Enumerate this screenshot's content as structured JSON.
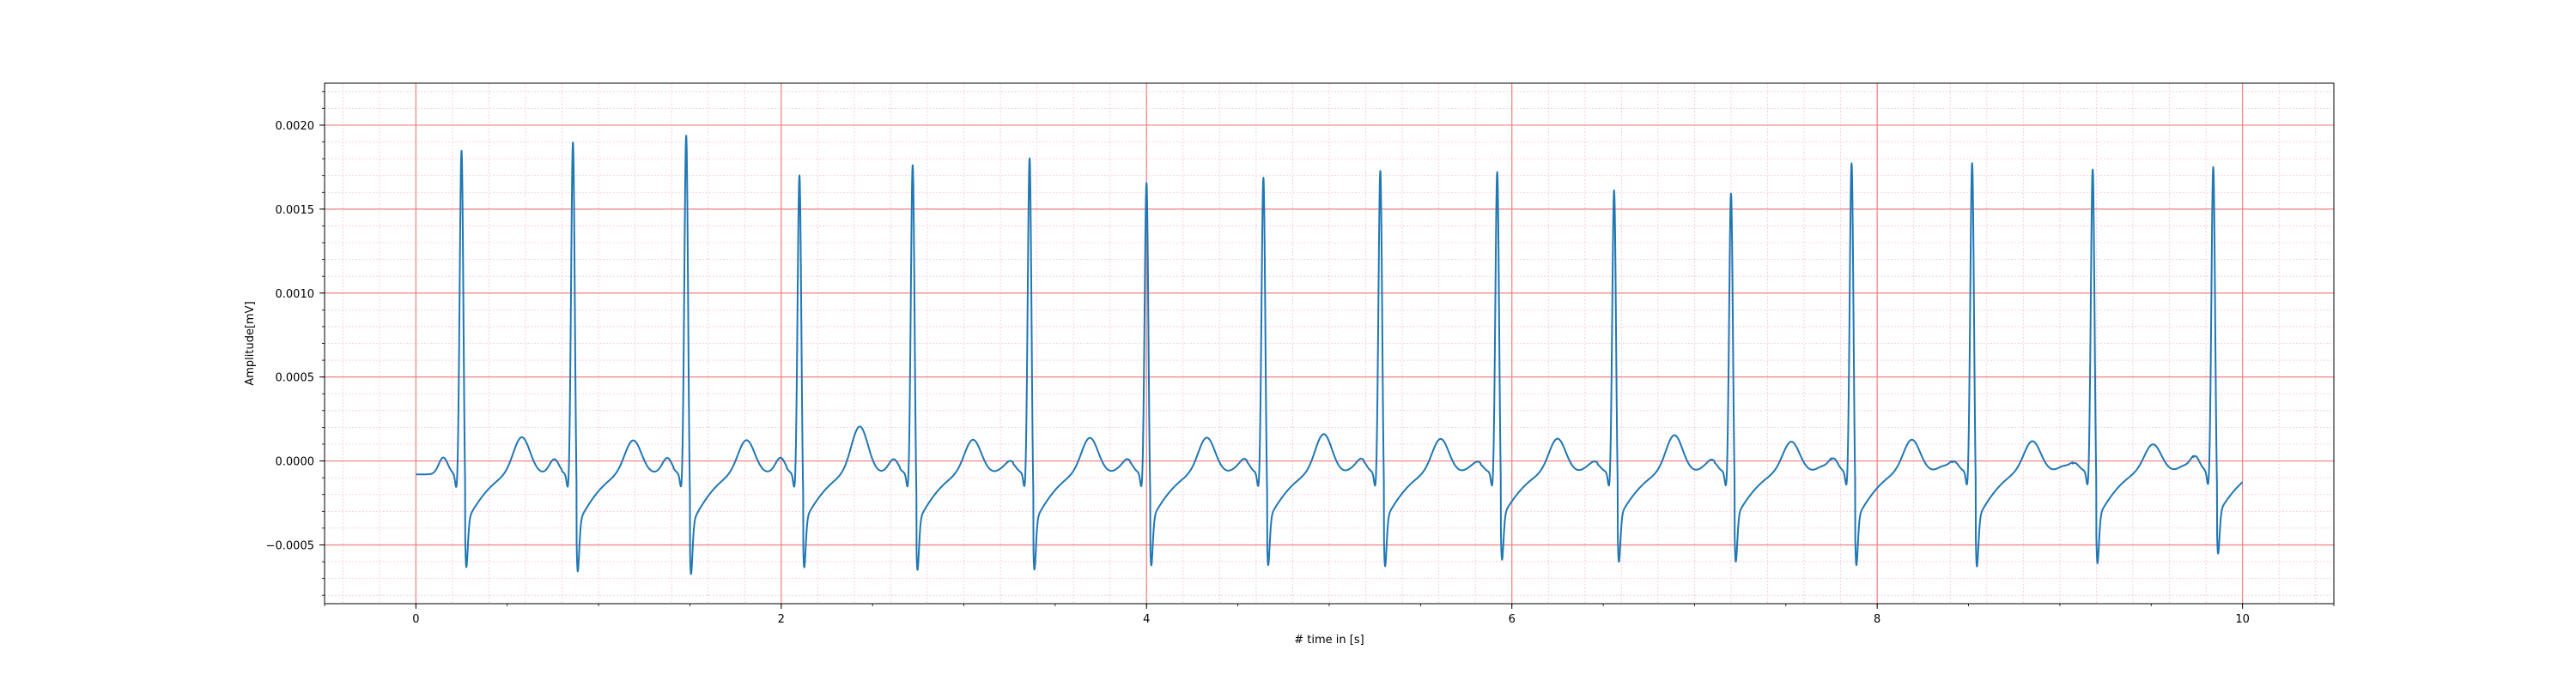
{
  "chart_data": {
    "type": "line",
    "title": "",
    "xlabel": "# time in [s]",
    "ylabel": "Amplitude[mV]",
    "xlim": [
      -0.5,
      10.5
    ],
    "ylim": [
      -0.00085,
      0.00225
    ],
    "x_ticks": [
      0,
      2,
      4,
      6,
      8,
      10
    ],
    "x_tick_labels": [
      "0",
      "2",
      "4",
      "6",
      "8",
      "10"
    ],
    "y_ticks": [
      -0.0005,
      0.0,
      0.0005,
      0.001,
      0.0015,
      0.002
    ],
    "y_tick_labels": [
      "−0.0005",
      "0.0000",
      "0.0005",
      "0.0010",
      "0.0015",
      "0.0020"
    ],
    "grid": {
      "major": true,
      "minor": true
    },
    "colors": {
      "line": "#1f77b4",
      "major_grid": "#f08080",
      "minor_grid": "#f7c6d6",
      "axes": "#000000"
    },
    "signal": {
      "sampling_hz": 100,
      "start_s": 0,
      "end_s": 10,
      "baseline_start_mV": -8e-05,
      "baseline_end_mV": -6e-05
    },
    "beats": [
      {
        "r_time": 0.25,
        "r_peak": 0.00201,
        "s_trough": -0.00066,
        "p_amp": 0.0001,
        "t_amp": 0.00022
      },
      {
        "r_time": 0.86,
        "r_peak": 0.00206,
        "s_trough": -0.00069,
        "p_amp": 6e-05,
        "t_amp": 0.0002
      },
      {
        "r_time": 1.48,
        "r_peak": 0.0021,
        "s_trough": -0.00071,
        "p_amp": 7e-05,
        "t_amp": 0.0002
      },
      {
        "r_time": 2.1,
        "r_peak": 0.00186,
        "s_trough": -0.00066,
        "p_amp": 7e-05,
        "t_amp": 0.00028
      },
      {
        "r_time": 2.72,
        "r_peak": 0.00192,
        "s_trough": -0.00068,
        "p_amp": 6e-05,
        "t_amp": 0.0002
      },
      {
        "r_time": 3.36,
        "r_peak": 0.00196,
        "s_trough": -0.00068,
        "p_amp": 6e-05,
        "t_amp": 0.00021
      },
      {
        "r_time": 4.0,
        "r_peak": 0.00181,
        "s_trough": -0.00065,
        "p_amp": 7e-05,
        "t_amp": 0.00021
      },
      {
        "r_time": 4.64,
        "r_peak": 0.00184,
        "s_trough": -0.00065,
        "p_amp": 7e-05,
        "t_amp": 0.00023
      },
      {
        "r_time": 5.28,
        "r_peak": 0.00188,
        "s_trough": -0.00066,
        "p_amp": 7e-05,
        "t_amp": 0.0002
      },
      {
        "r_time": 5.92,
        "r_peak": 0.00187,
        "s_trough": -0.00062,
        "p_amp": 5e-05,
        "t_amp": 0.0002
      },
      {
        "r_time": 6.56,
        "r_peak": 0.00176,
        "s_trough": -0.00063,
        "p_amp": 5e-05,
        "t_amp": 0.00022
      },
      {
        "r_time": 7.2,
        "r_peak": 0.00174,
        "s_trough": -0.00063,
        "p_amp": 6e-05,
        "t_amp": 0.00018
      },
      {
        "r_time": 7.86,
        "r_peak": 0.00192,
        "s_trough": -0.00066,
        "p_amp": 8e-05,
        "t_amp": 0.00019
      },
      {
        "r_time": 8.52,
        "r_peak": 0.00192,
        "s_trough": -0.00067,
        "p_amp": 6e-05,
        "t_amp": 0.00018
      },
      {
        "r_time": 9.18,
        "r_peak": 0.00188,
        "s_trough": -0.00065,
        "p_amp": 5e-05,
        "t_amp": 0.00016
      },
      {
        "r_time": 9.84,
        "r_peak": 0.00189,
        "s_trough": -0.00059,
        "p_amp": 9e-05,
        "t_amp": 0.0001
      }
    ]
  }
}
